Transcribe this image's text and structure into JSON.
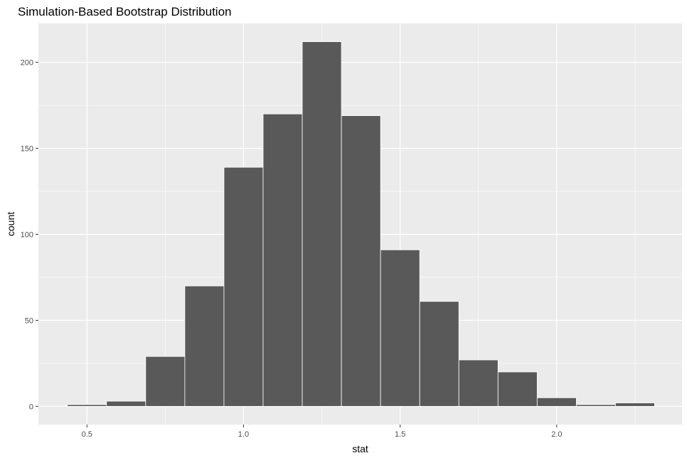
{
  "chart_data": {
    "type": "bar",
    "subtype": "histogram",
    "title": "Simulation-Based Bootstrap Distribution",
    "xlabel": "stat",
    "ylabel": "count",
    "bin_width": 0.125,
    "bins": [
      {
        "x0": 0.4375,
        "x1": 0.5625,
        "count": 1
      },
      {
        "x0": 0.5625,
        "x1": 0.6875,
        "count": 3
      },
      {
        "x0": 0.6875,
        "x1": 0.8125,
        "count": 29
      },
      {
        "x0": 0.8125,
        "x1": 0.9375,
        "count": 70
      },
      {
        "x0": 0.9375,
        "x1": 1.0625,
        "count": 139
      },
      {
        "x0": 1.0625,
        "x1": 1.1875,
        "count": 170
      },
      {
        "x0": 1.1875,
        "x1": 1.3125,
        "count": 212
      },
      {
        "x0": 1.3125,
        "x1": 1.4375,
        "count": 169
      },
      {
        "x0": 1.4375,
        "x1": 1.5625,
        "count": 91
      },
      {
        "x0": 1.5625,
        "x1": 1.6875,
        "count": 61
      },
      {
        "x0": 1.6875,
        "x1": 1.8125,
        "count": 27
      },
      {
        "x0": 1.8125,
        "x1": 1.9375,
        "count": 20
      },
      {
        "x0": 1.9375,
        "x1": 2.0625,
        "count": 5
      },
      {
        "x0": 2.0625,
        "x1": 2.1875,
        "count": 1
      },
      {
        "x0": 2.1875,
        "x1": 2.3125,
        "count": 2
      }
    ],
    "xlim": [
      0.345,
      2.4
    ],
    "ylim": [
      -10.6,
      222.6
    ],
    "x_ticks": [
      0.5,
      1.0,
      1.5,
      2.0
    ],
    "x_tick_labels": [
      "0.5",
      "1.0",
      "1.5",
      "2.0"
    ],
    "y_ticks": [
      0,
      50,
      100,
      150,
      200
    ],
    "y_tick_labels": [
      "0",
      "50",
      "100",
      "150",
      "200"
    ],
    "grid": true,
    "colors": {
      "panel_background": "#ebebeb",
      "grid_major": "#ffffff",
      "bar_fill": "#595959",
      "bar_outline": "#ffffff",
      "tick": "#333333"
    }
  }
}
